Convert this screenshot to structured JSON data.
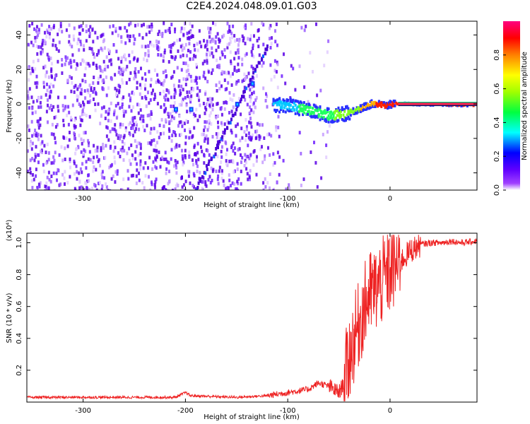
{
  "title": "C2E4.2024.048.09.01.G03",
  "chart_data": [
    {
      "type": "heatmap",
      "xlabel": "Height of straight line (km)",
      "ylabel": "Frequency (Hz)",
      "xlim": [
        -355,
        85
      ],
      "ylim": [
        -50,
        48
      ],
      "x_ticks": [
        -300,
        -200,
        -100,
        0
      ],
      "x_tick_labels": [
        "-300",
        "-200",
        "-100",
        "0"
      ],
      "y_ticks": [
        -40,
        -20,
        0,
        20,
        40
      ],
      "y_tick_labels": [
        "-40",
        "-20",
        "0",
        "20",
        "40"
      ],
      "colorbar": {
        "label": "Normalized spectral amplitude",
        "range": [
          0,
          1
        ],
        "ticks": [
          0.0,
          0.2,
          0.4,
          0.6,
          0.8
        ],
        "tick_labels": [
          "0.0",
          "0.2",
          "0.4",
          "0.6",
          "0.8"
        ],
        "colors": [
          "#ffffff",
          "#8000ff",
          "#0000ff",
          "#00ffff",
          "#00ff00",
          "#ffff00",
          "#ff8000",
          "#ff0000",
          "#ff0080"
        ]
      },
      "features": {
        "carrier_line": {
          "x": [
            -115,
            -100,
            -80,
            -60,
            -45,
            -30,
            -18,
            -5,
            5,
            85
          ],
          "y": [
            0,
            0,
            -3,
            -6,
            -5,
            -2,
            1,
            0,
            1,
            0
          ]
        },
        "diagonal_streak": {
          "x": [
            -190,
            -120
          ],
          "y": [
            -48,
            35
          ]
        },
        "cluster_points": [
          [
            -210,
            -3
          ],
          [
            -195,
            -3
          ],
          [
            -150,
            0
          ],
          [
            -135,
            12
          ]
        ]
      }
    },
    {
      "type": "line",
      "xlabel": "Height of straight line (km)",
      "ylabel": "SNR (10 * v/v)",
      "y_multiplier": "(x10⁴)",
      "xlim": [
        -355,
        85
      ],
      "ylim": [
        0.0,
        1.06
      ],
      "x_ticks": [
        -300,
        -200,
        -100,
        0
      ],
      "x_tick_labels": [
        "-300",
        "-200",
        "-100",
        "0"
      ],
      "y_ticks": [
        0.2,
        0.4,
        0.6,
        0.8,
        1.0
      ],
      "y_tick_labels": [
        "0.2",
        "0.4",
        "0.6",
        "0.8",
        "1.0"
      ],
      "color": "#ee2222",
      "series": [
        {
          "x": [
            -355,
            -300,
            -250,
            -210,
            -200,
            -195,
            -150,
            -120,
            -100,
            -80,
            -70,
            -60,
            -50,
            -45,
            -40,
            -35,
            -30,
            -25,
            -20,
            -15,
            -10,
            -5,
            0,
            10,
            20,
            30,
            40,
            50,
            60,
            70,
            85
          ],
          "y": [
            0.03,
            0.03,
            0.03,
            0.03,
            0.06,
            0.04,
            0.03,
            0.04,
            0.06,
            0.08,
            0.12,
            0.1,
            0.06,
            0.12,
            0.28,
            0.4,
            0.5,
            0.6,
            0.68,
            0.7,
            0.74,
            0.78,
            0.82,
            0.88,
            0.95,
            0.99,
            1.0,
            1.0,
            1.01,
            1.0,
            1.01
          ]
        }
      ]
    }
  ]
}
